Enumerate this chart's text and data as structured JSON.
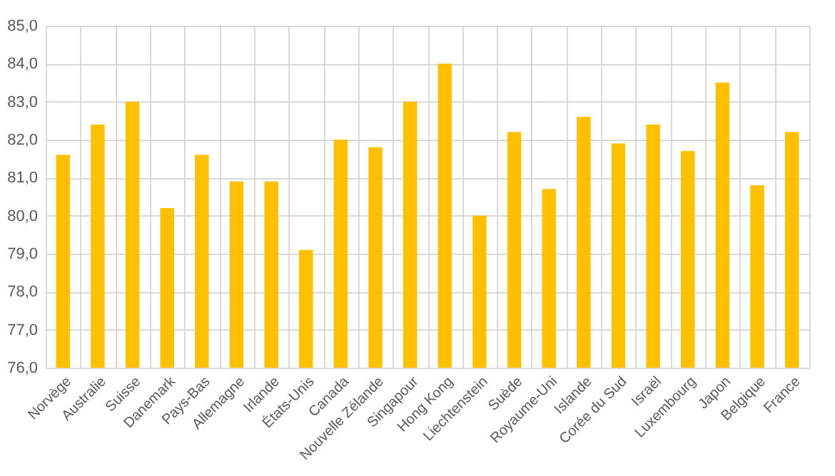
{
  "chart_data": {
    "type": "bar",
    "categories": [
      "Norvège",
      "Australie",
      "Suisse",
      "Danemark",
      "Pays-Bas",
      "Allemagne",
      "Irlande",
      "États-Unis",
      "Canada",
      "Nouvelle Zélande",
      "Singapour",
      "Hong Kong",
      "Liechtenstein",
      "Suède",
      "Royaume-Uni",
      "Islande",
      "Corée du Sud",
      "Israël",
      "Luxembourg",
      "Japon",
      "Belgique",
      "France"
    ],
    "values": [
      81.6,
      82.4,
      83.0,
      80.2,
      81.6,
      80.9,
      80.9,
      79.1,
      82.0,
      81.8,
      83.0,
      84.0,
      80.0,
      82.2,
      80.7,
      82.6,
      81.9,
      82.4,
      81.7,
      83.5,
      80.8,
      82.2
    ],
    "color": "#ffc000",
    "ylim": [
      76,
      85
    ],
    "yticks": [
      {
        "value": 76,
        "label": "76,0"
      },
      {
        "value": 77,
        "label": "77,0"
      },
      {
        "value": 78,
        "label": "78,0"
      },
      {
        "value": 79,
        "label": "79,0"
      },
      {
        "value": 80,
        "label": "80,0"
      },
      {
        "value": 81,
        "label": "81,0"
      },
      {
        "value": 82,
        "label": "82,0"
      },
      {
        "value": 83,
        "label": "83,0"
      },
      {
        "value": 84,
        "label": "84,0"
      },
      {
        "value": 85,
        "label": "85,0"
      }
    ],
    "grid": true
  }
}
